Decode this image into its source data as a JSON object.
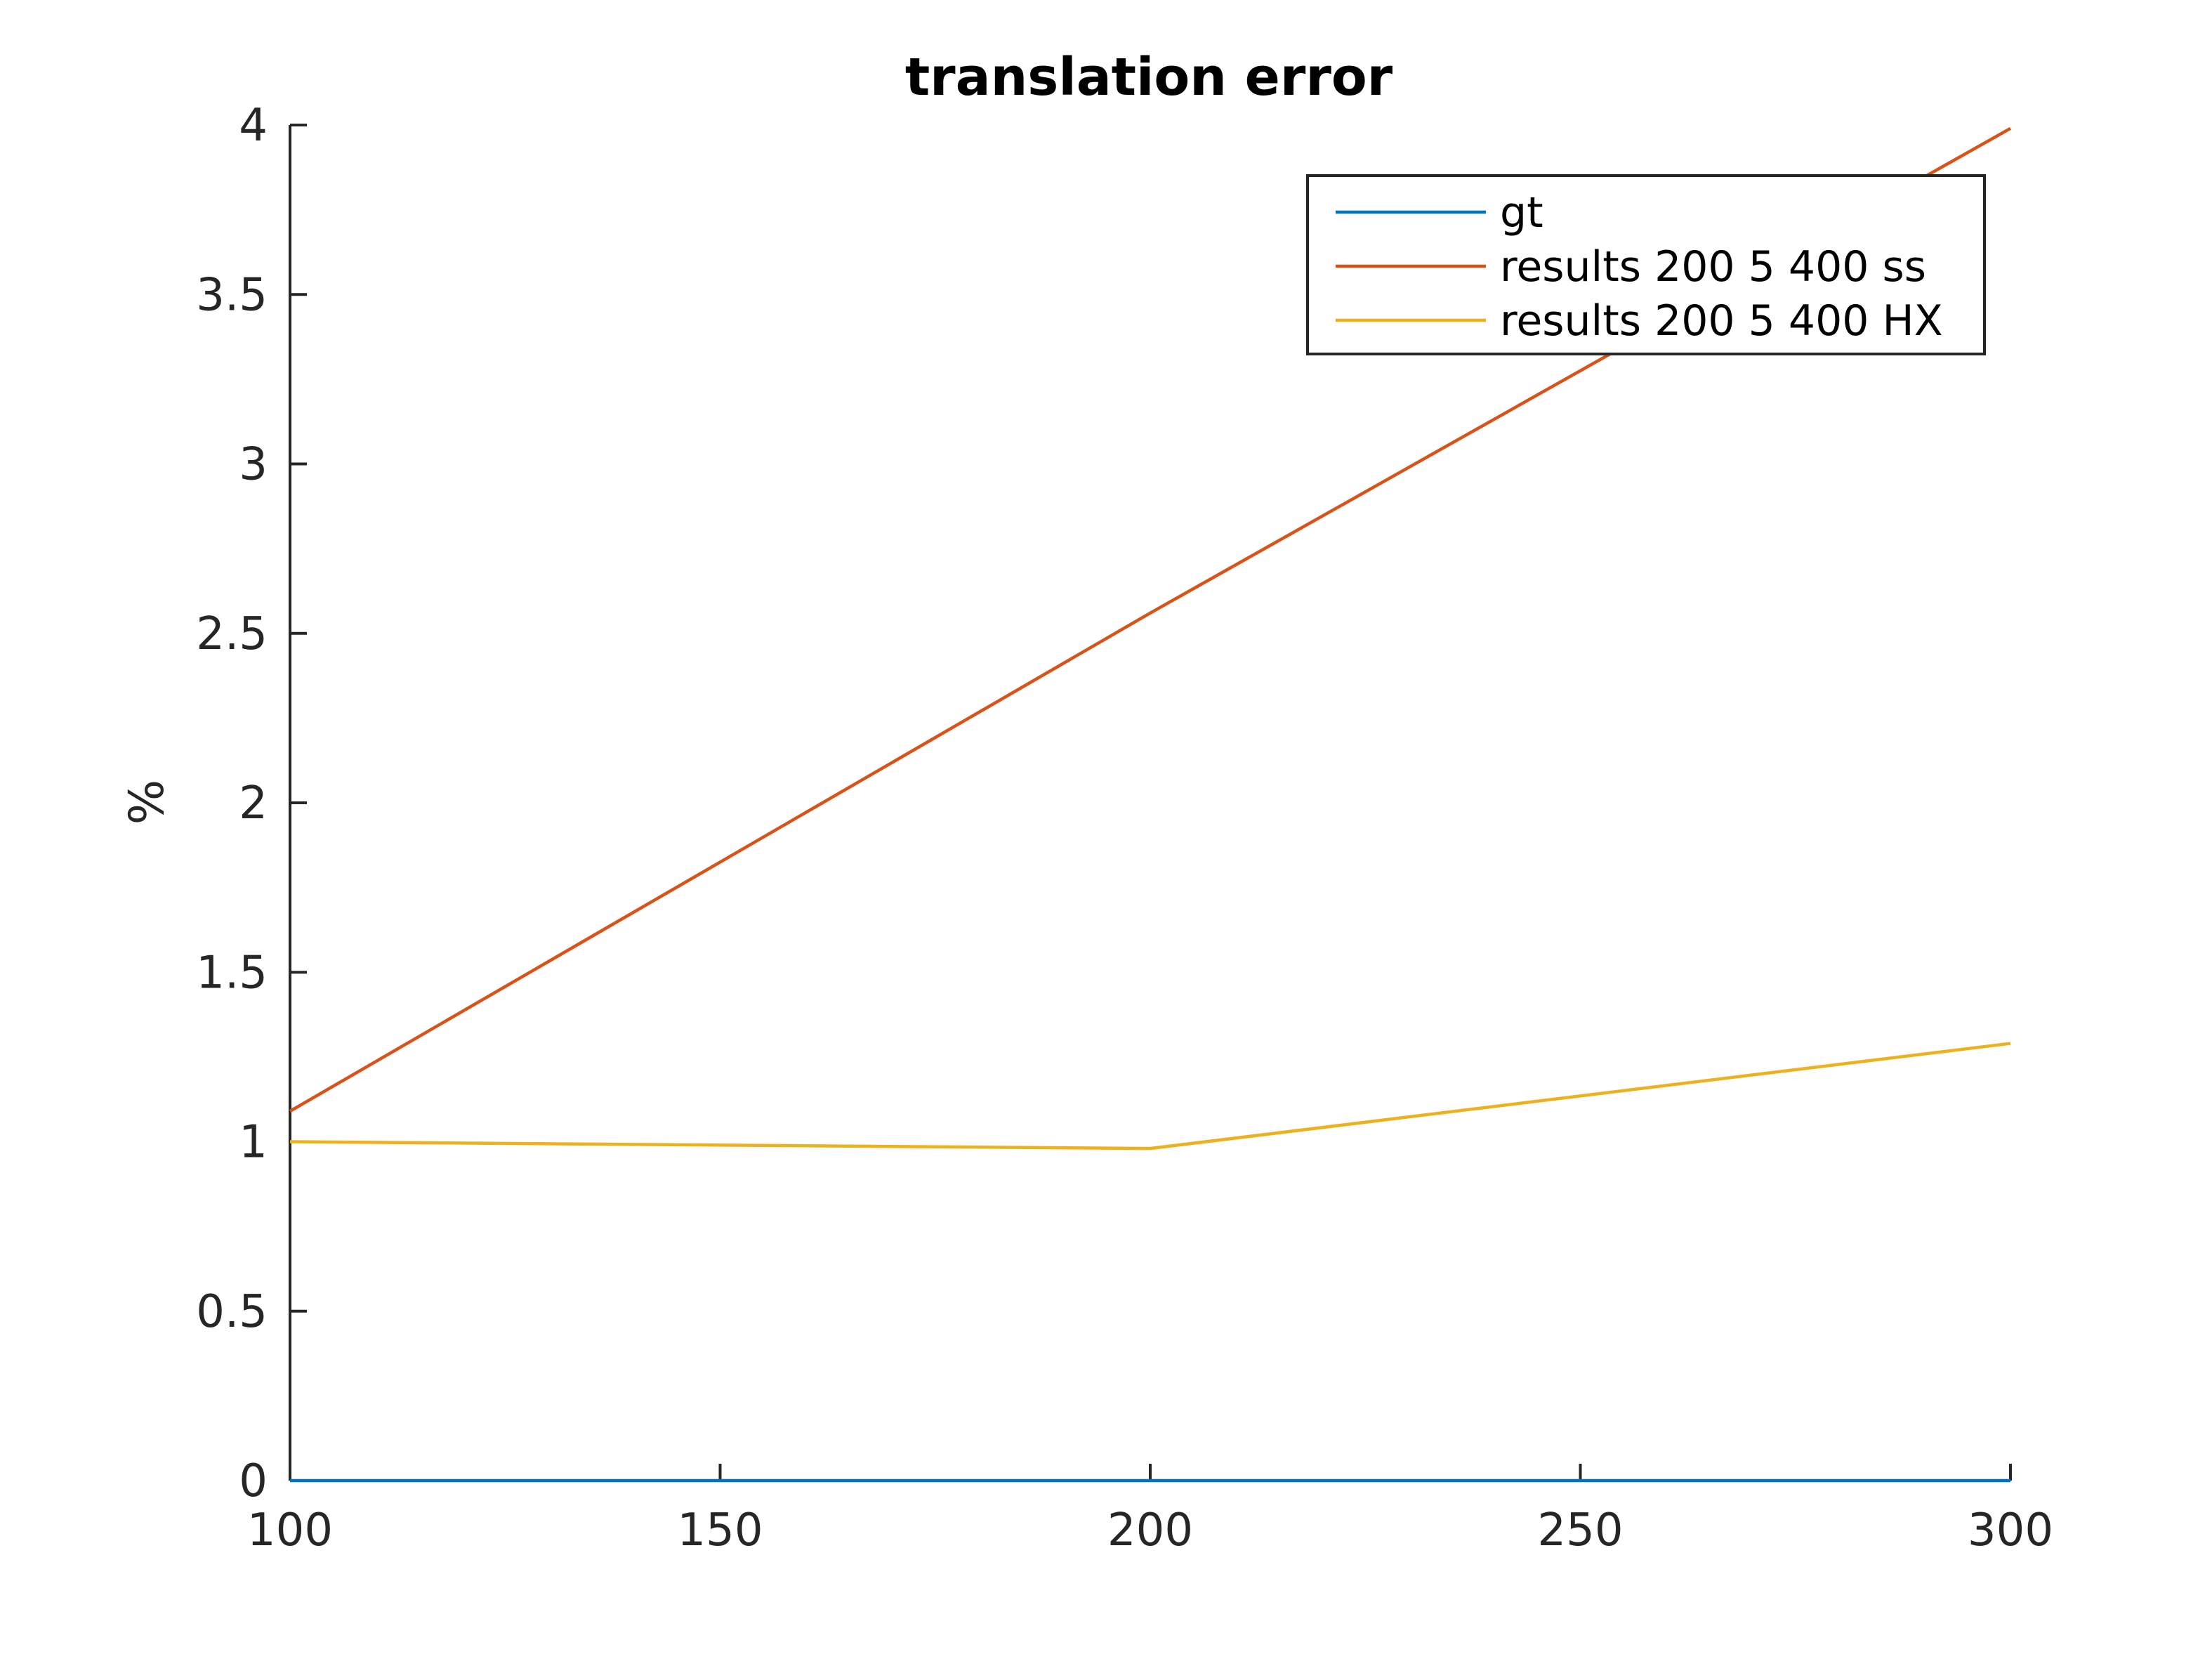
{
  "chart_data": {
    "type": "line",
    "title": "translation error",
    "xlabel": "",
    "ylabel": "%",
    "x": [
      100,
      200,
      300
    ],
    "xlim": [
      100,
      300
    ],
    "ylim": [
      0,
      4
    ],
    "xticks": [
      "100",
      "150",
      "200",
      "250",
      "300"
    ],
    "yticks": [
      "0",
      "0.5",
      "1",
      "1.5",
      "2",
      "2.5",
      "3",
      "3.5",
      "4"
    ],
    "grid": false,
    "legend_position": "top-right",
    "series": [
      {
        "name": "gt",
        "color": "#0072BD",
        "values": [
          0,
          0,
          0
        ]
      },
      {
        "name": "results 200 5 400 ss",
        "color": "#D95319",
        "values": [
          1.09,
          2.56,
          3.99
        ]
      },
      {
        "name": "results 200 5 400 HX",
        "color": "#EDB120",
        "values": [
          1.0,
          0.98,
          1.29
        ]
      }
    ]
  }
}
